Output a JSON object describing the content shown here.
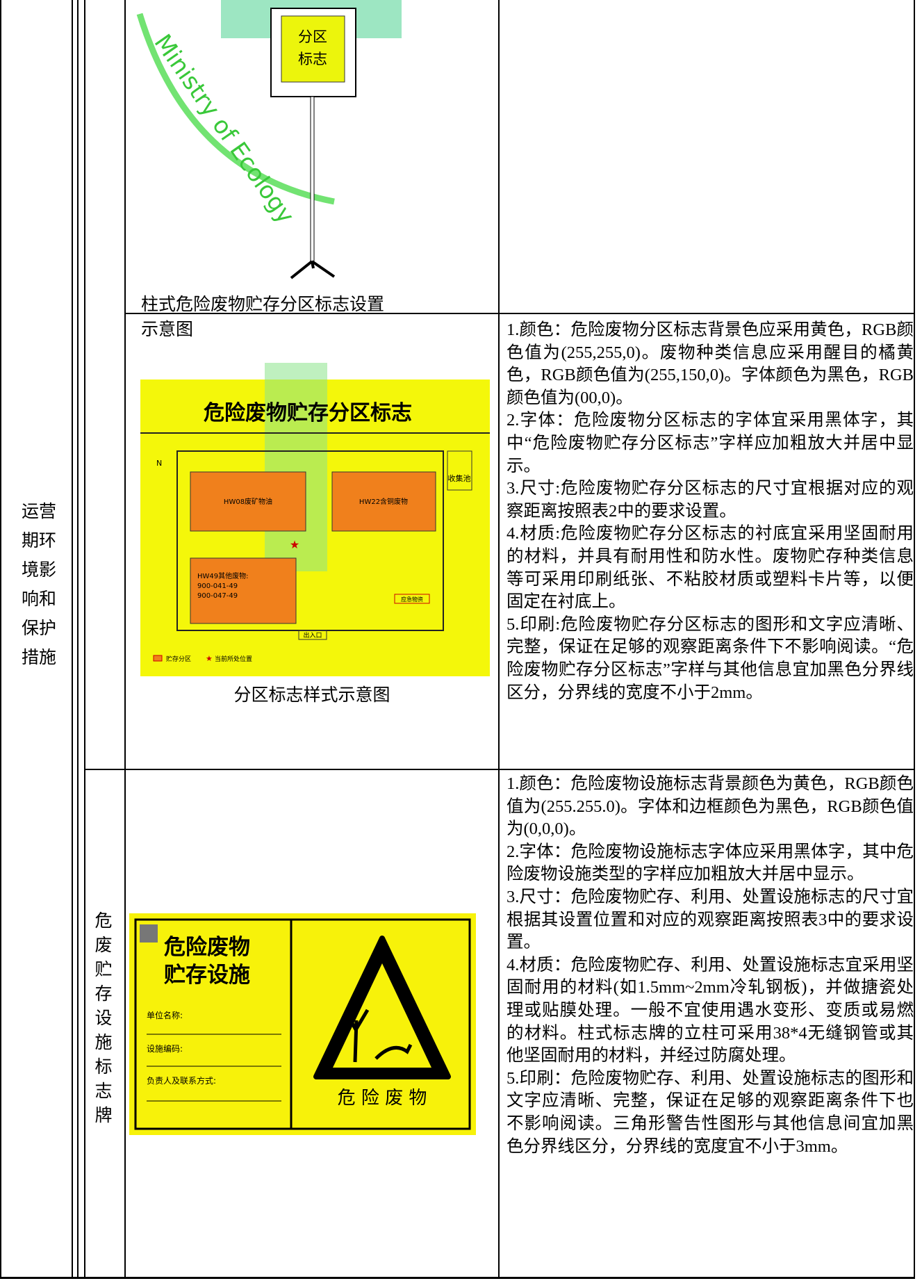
{
  "section_label": "运营期环境影响和保护措施",
  "facility_label": "危废贮存设施标志牌",
  "watermark": "Ministry of Ecology",
  "figures": [
    {
      "sign_lines": [
        "分区",
        "标志"
      ],
      "caption": "柱式危险废物贮存分区标志设置示意图"
    },
    {
      "title": "危险废物贮存分区标志",
      "north": "N",
      "areas": [
        "HW08废矿物油",
        "HW22含铜废物"
      ],
      "area3_lines": [
        "HW49其他废物:",
        "900-041-49",
        "900-047-49"
      ],
      "pool": "收集池",
      "entrance": "出入口",
      "emergency": "应急物资",
      "legend": [
        "贮存分区",
        "当前所处位置"
      ],
      "caption": "分区标志样式示意图"
    },
    {
      "title_lines": [
        "危险废物",
        "贮存设施"
      ],
      "fields": [
        "单位名称:",
        "设施编码:",
        "负责人及联系方式:"
      ],
      "warning": "危 险 废 物"
    }
  ],
  "descriptions": [
    [
      "1.颜色：危险废物分区标志背景色应采用黄色，RGB颜色值为(255,255,0)。废物种类信息应采用醒目的橘黄色，RGB颜色值为(255,150,0)。字体颜色为黑色，RGB 颜色值为(00,0)。",
      "2.字体：危险废物分区标志的字体宜采用黑体字，其中“危险废物贮存分区标志”字样应加粗放大并居中显示。",
      "3.尺寸:危险废物贮存分区标志的尺寸宜根据对应的观察距离按照表2中的要求设置。",
      "4.材质:危险废物贮存分区标志的衬底宜采用坚固耐用的材料，并具有耐用性和防水性。废物贮存种类信息等可采用印刷纸张、不粘胶材质或塑料卡片等，以便固定在衬底上。",
      "5.印刷:危险废物贮存分区标志的图形和文字应清晰、完整，保证在足够的观察距离条件下不影响阅读。“危险废物贮存分区标志”字样与其他信息宜加黑色分界线区分，分界线的宽度不小于2mm。"
    ],
    [
      "1.颜色：危险废物设施标志背景颜色为黄色，RGB颜色值为(255.255.0)。字体和边框颜色为黑色，RGB颜色值为(0,0,0)。",
      "2.字体：危险废物设施标志字体应采用黑体字，其中危险废物设施类型的字样应加粗放大并居中显示。",
      "3.尺寸：危险废物贮存、利用、处置设施标志的尺寸宜根据其设置位置和对应的观察距离按照表3中的要求设置。",
      "4.材质：危险废物贮存、利用、处置设施标志宜采用坚固耐用的材料(如1.5mm~2mm冷轧钢板)，并做搪瓷处理或贴膜处理。一般不宜使用遇水变形、变质或易燃的材料。柱式标志牌的立柱可采用38*4无缝钢管或其他坚固耐用的材料，并经过防腐处理。",
      "5.印刷：危险废物贮存、利用、处置设施标志的图形和文字应清晰、完整，保证在足够的观察距离条件下也不影响阅读。三角形警告性图形与其他信息间宜加黑色分界线区分，分界线的宽度宜不小于3mm。"
    ]
  ]
}
